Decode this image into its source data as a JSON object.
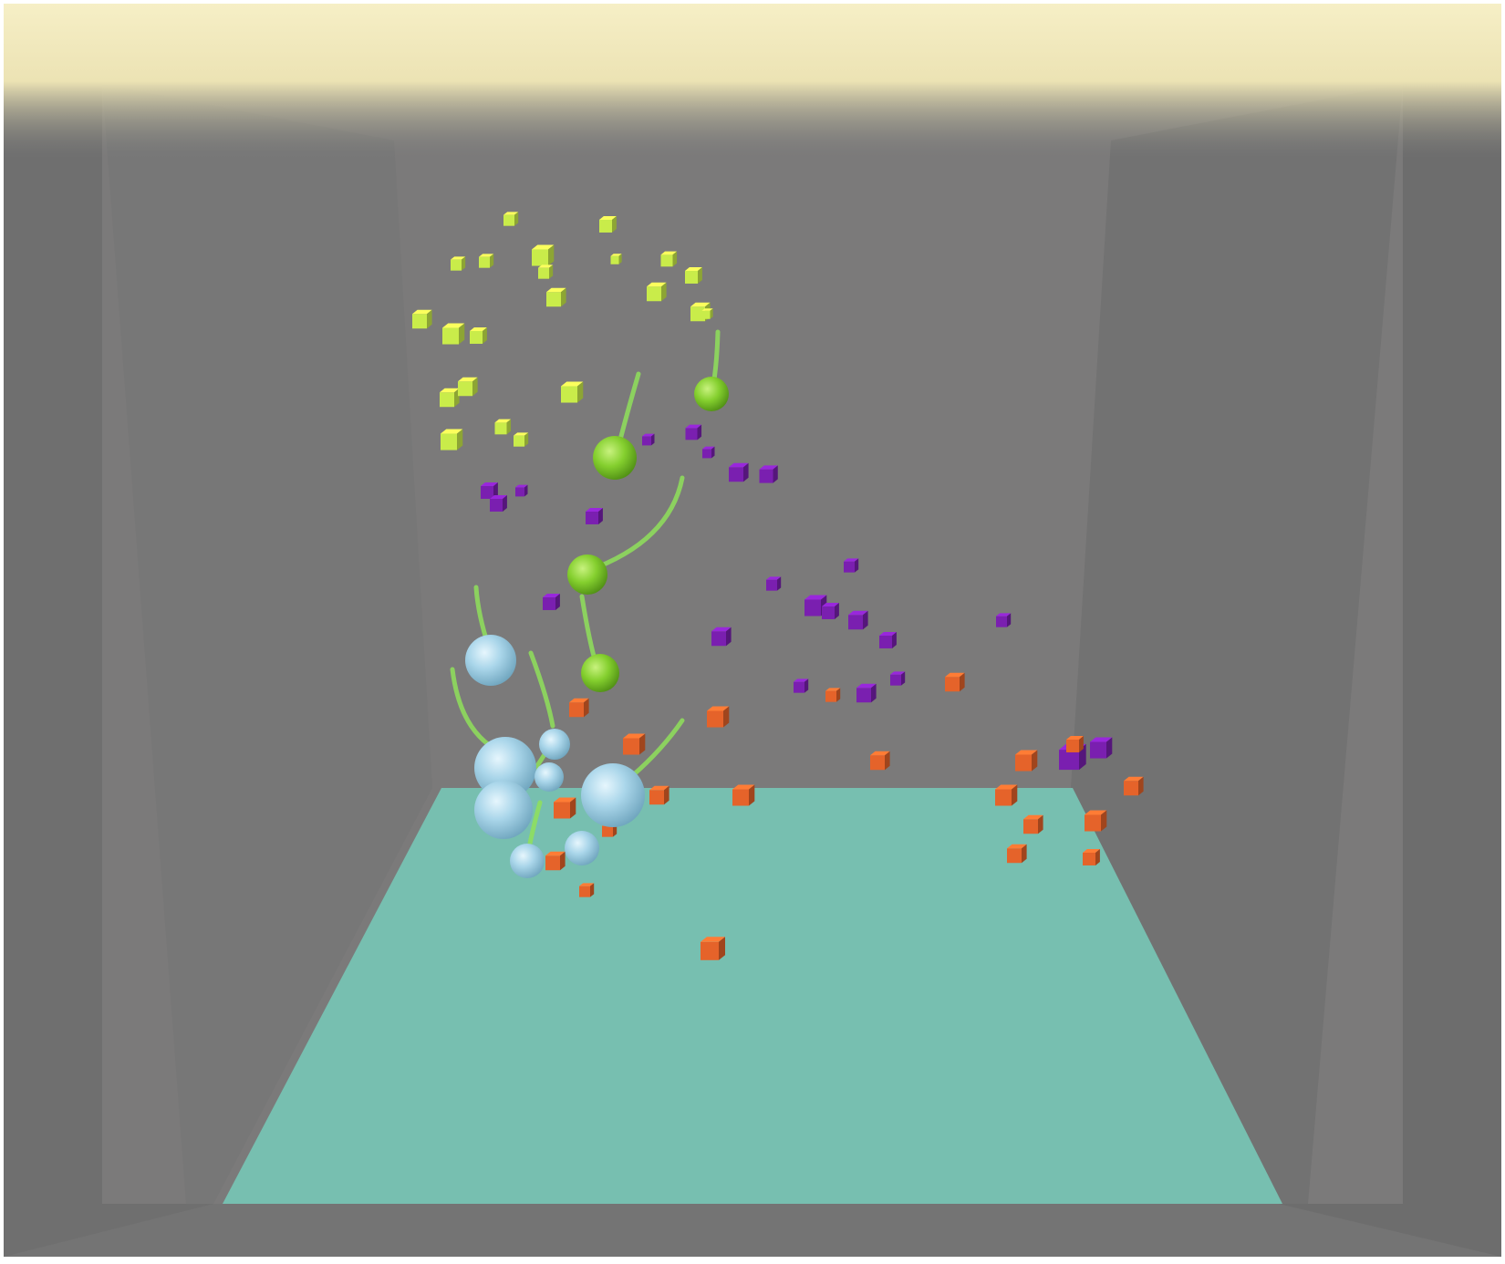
{
  "scene": {
    "colors": {
      "light_strip": "#f4ecbf",
      "floor": "#77bfb0",
      "back_wall": "#7c7b7b",
      "side_wall": "#707070",
      "left_panel": "#7a7a7a",
      "outer": "#767676",
      "food_yellow_green": "#c9ec4a",
      "food_purple": "#7a1fb0",
      "food_orange": "#e5632a",
      "creature_green": "#7fcc2a",
      "creature_blue": "#a9d6ea",
      "trail": "#8fe05a"
    },
    "icons": {
      "food_yellow_green": "cube-icon",
      "food_purple": "cube-icon",
      "food_orange": "cube-icon",
      "creature_green": "sphere-icon",
      "creature_blue": "sphere-icon"
    }
  }
}
